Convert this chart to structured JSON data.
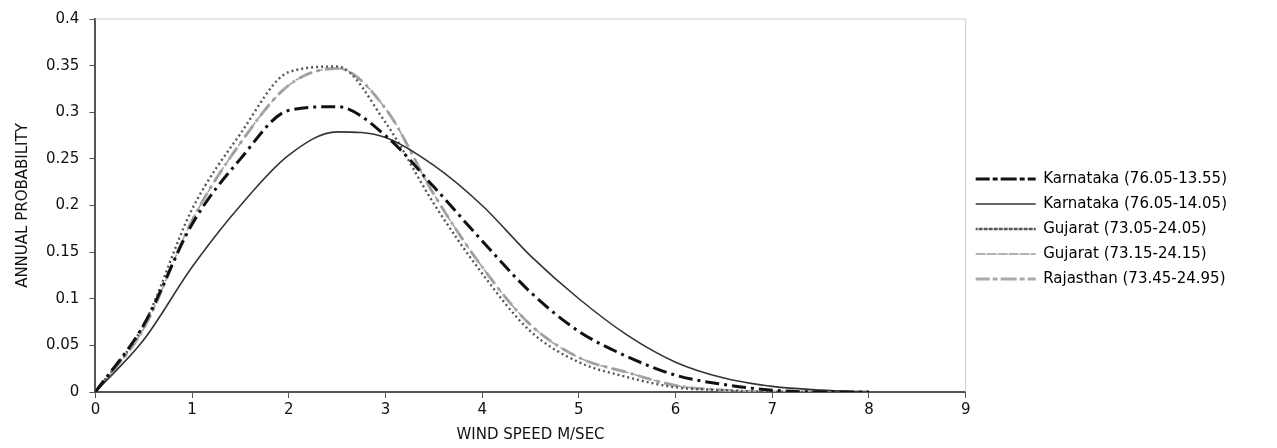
{
  "chart_data": {
    "type": "line",
    "xlabel": "WIND SPEED M/SEC",
    "ylabel": "ANNUAL PROBABILITY",
    "x": [
      0,
      0.5,
      1,
      1.5,
      2,
      2.5,
      3,
      3.5,
      4,
      4.5,
      5,
      5.5,
      6,
      6.5,
      7,
      7.5,
      8
    ],
    "xlim": [
      0,
      9
    ],
    "xticks": [
      0,
      1,
      2,
      3,
      4,
      5,
      6,
      7,
      8,
      9
    ],
    "ylim": [
      0,
      0.4
    ],
    "yticks": [
      0,
      0.05,
      0.1,
      0.15,
      0.2,
      0.25,
      0.3,
      0.35,
      0.4
    ],
    "grid": false,
    "legend": "right",
    "series": [
      {
        "name": "Karnataka (76.05-13.55)",
        "color": "#111111",
        "line_style": "dashdot",
        "values": [
          0,
          0.072,
          0.18,
          0.25,
          0.302,
          0.306,
          0.275,
          0.22,
          0.162,
          0.107,
          0.065,
          0.038,
          0.018,
          0.008,
          0.002,
          0,
          0
        ]
      },
      {
        "name": "Karnataka (76.05-14.05)",
        "color": "#333333",
        "line_style": "solid",
        "values": [
          0,
          0.056,
          0.134,
          0.2,
          0.254,
          0.279,
          0.273,
          0.243,
          0.2,
          0.146,
          0.1,
          0.061,
          0.032,
          0.015,
          0.006,
          0.002,
          0
        ]
      },
      {
        "name": "Gujarat (73.05-24.05)",
        "color": "#555555",
        "line_style": "dotted",
        "values": [
          0,
          0.072,
          0.196,
          0.277,
          0.343,
          0.349,
          0.289,
          0.202,
          0.127,
          0.065,
          0.032,
          0.016,
          0.005,
          0.002,
          0,
          0,
          0
        ]
      },
      {
        "name": "Gujarat (73.15-24.15)",
        "color": "#999999",
        "line_style": "dashed",
        "values": [
          0,
          0.068,
          0.184,
          0.267,
          0.329,
          0.347,
          0.304,
          0.212,
          0.134,
          0.072,
          0.037,
          0.021,
          0.007,
          0.002,
          0,
          0,
          0
        ]
      },
      {
        "name": "Rajasthan (73.45-24.95)",
        "color": "#aaaaaa",
        "line_style": "dashdot",
        "values": [
          0,
          0.068,
          0.184,
          0.267,
          0.329,
          0.347,
          0.304,
          0.212,
          0.134,
          0.072,
          0.037,
          0.021,
          0.007,
          0.002,
          0,
          0,
          0
        ]
      }
    ]
  }
}
